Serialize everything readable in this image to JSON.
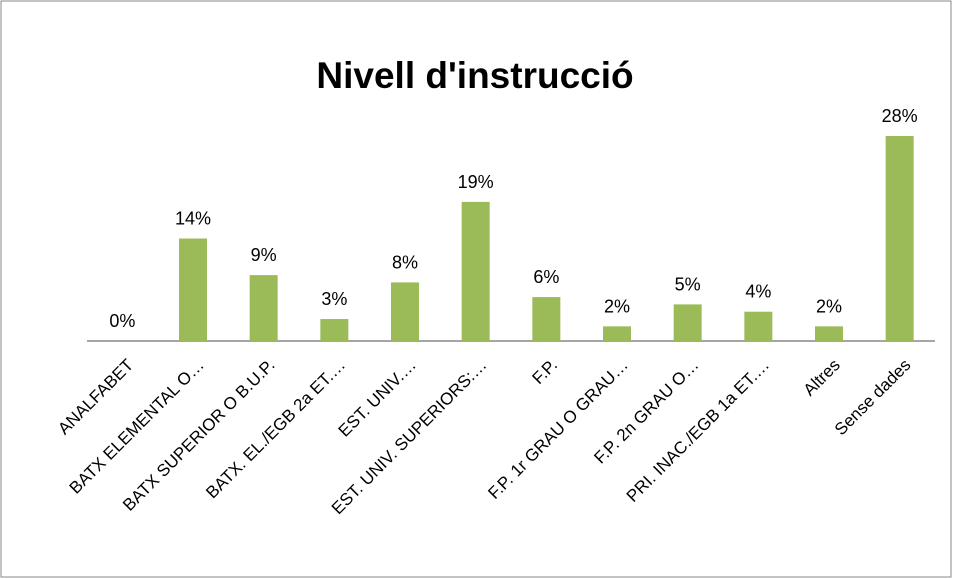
{
  "chart_data": {
    "type": "bar",
    "title": "Nivell d'instrucció",
    "categories": [
      "ANALFABET",
      "BATX ELEMENTAL O…",
      "BATX SUPERIOR O B.U.P.",
      "BATX. EL./EGB 2a ET.…",
      "EST. UNIV.…",
      "EST. UNIV. SUPERIORS:…",
      "F.P.",
      "F.P. 1r GRAU O GRAU…",
      "F.P. 2n GRAU O…",
      "PRI. INAC./EGB 1a ET.…",
      "Altres",
      "Sense dades"
    ],
    "values": [
      0,
      14,
      9,
      3,
      8,
      19,
      6,
      2,
      5,
      4,
      2,
      28
    ],
    "value_labels": [
      "0%",
      "14%",
      "9%",
      "3%",
      "8%",
      "19%",
      "6%",
      "2%",
      "5%",
      "4%",
      "2%",
      "28%"
    ],
    "color": "#9bbb59"
  }
}
